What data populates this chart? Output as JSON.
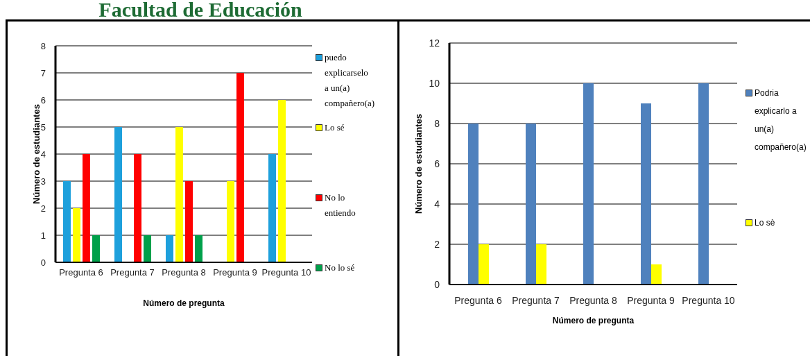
{
  "chart_data": [
    {
      "type": "bar",
      "title": "Facultad de Educación",
      "xlabel": "Número de pregunta",
      "ylabel": "Número de estudiantes",
      "categories": [
        "Pregunta 6",
        "Pregunta 7",
        "Pregunta 8",
        "Pregunta 9",
        "Pregunta 10"
      ],
      "series": [
        {
          "name": "puedo explicarselo a un(a) compañero(a)",
          "color": "#1ea0dc",
          "values": [
            3,
            5,
            1,
            0,
            4
          ]
        },
        {
          "name": "Lo sé",
          "color": "#ffff00",
          "values": [
            2,
            0,
            5,
            3,
            6
          ]
        },
        {
          "name": "No lo entiendo",
          "color": "#ff0000",
          "values": [
            4,
            4,
            3,
            7,
            0
          ]
        },
        {
          "name": "No lo sé",
          "color": "#00a04a",
          "values": [
            1,
            1,
            1,
            0,
            0
          ]
        }
      ],
      "ylim": [
        0,
        8
      ],
      "yticks": [
        0,
        1,
        2,
        3,
        4,
        5,
        6,
        7,
        8
      ],
      "grid": "y",
      "legend": "right"
    },
    {
      "type": "bar",
      "xlabel": "Número de pregunta",
      "ylabel": "Número de estudiantes",
      "categories": [
        "Pregunta 6",
        "Pregunta 7",
        "Pregunta 8",
        "Pregunta 9",
        "Pregunta 10"
      ],
      "series": [
        {
          "name": "Podria explicarlo a un(a) compañero(a)",
          "color": "#4f81bd",
          "values": [
            8,
            8,
            10,
            9,
            10
          ]
        },
        {
          "name": "Lo sè",
          "color": "#ffff00",
          "values": [
            2,
            2,
            0,
            1,
            0
          ]
        }
      ],
      "ylim": [
        0,
        12
      ],
      "yticks": [
        0,
        2,
        4,
        6,
        8,
        10,
        12
      ],
      "grid": "y",
      "legend": "right"
    }
  ]
}
